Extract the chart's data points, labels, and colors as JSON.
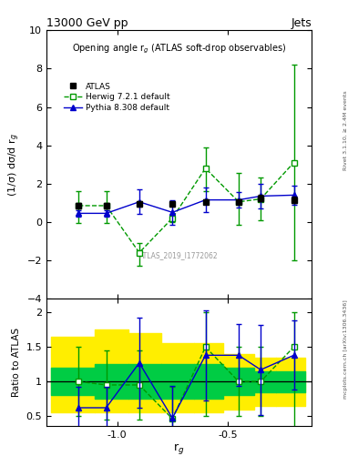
{
  "title_top": "13000 GeV pp",
  "title_top_right": "Jets",
  "plot_title": "Opening angle r$_g$ (ATLAS soft-drop observables)",
  "ylabel_main": "(1/σ) dσ/d r$_g$",
  "ylabel_ratio": "Ratio to ATLAS",
  "xlabel": "r$_g$",
  "right_label_top": "Rivet 3.1.10, ≥ 2.4M events",
  "right_label_bot": "mcplots.cern.ch [arXiv:1306.3436]",
  "watermark": "ATLAS_2019_I1772062",
  "x_data": [
    -1.175,
    -1.05,
    -0.9,
    -0.75,
    -0.6,
    -0.45,
    -0.35,
    -0.2
  ],
  "atlas_y": [
    0.85,
    0.85,
    0.93,
    0.93,
    1.05,
    1.05,
    1.25,
    1.15
  ],
  "atlas_yerr": [
    0.15,
    0.15,
    0.15,
    0.12,
    0.12,
    0.12,
    0.15,
    0.15
  ],
  "herwig_y": [
    0.85,
    0.85,
    -1.6,
    0.2,
    2.8,
    1.05,
    1.2,
    3.1
  ],
  "herwig_yerr_lo": [
    0.9,
    0.9,
    0.7,
    0.2,
    1.2,
    1.2,
    1.1,
    5.1
  ],
  "herwig_yerr_hi": [
    0.75,
    0.75,
    0.5,
    0.15,
    1.1,
    1.5,
    1.1,
    5.1
  ],
  "pythia_y": [
    0.45,
    0.45,
    1.05,
    0.5,
    1.15,
    1.15,
    1.35,
    1.4
  ],
  "pythia_yerr": [
    0.15,
    0.15,
    0.65,
    0.65,
    0.65,
    0.4,
    0.65,
    0.5
  ],
  "ratio_herwig_y": [
    1.0,
    0.95,
    0.95,
    0.46,
    1.5,
    1.0,
    1.0,
    1.5
  ],
  "ratio_herwig_yerr_lo": [
    0.5,
    0.5,
    0.5,
    0.46,
    1.0,
    0.5,
    0.5,
    1.5
  ],
  "ratio_herwig_yerr_hi": [
    0.5,
    0.5,
    0.5,
    0.46,
    0.5,
    0.5,
    0.5,
    0.5
  ],
  "ratio_pythia_y": [
    0.62,
    0.62,
    1.27,
    0.47,
    1.38,
    1.38,
    1.17,
    1.38
  ],
  "ratio_pythia_yerr": [
    0.3,
    0.3,
    0.65,
    0.47,
    0.65,
    0.45,
    0.65,
    0.5
  ],
  "band_edges": [
    -1.3,
    -1.1,
    -0.95,
    -0.8,
    -0.65,
    -0.52,
    -0.38,
    -0.28,
    -0.15
  ],
  "green_lo": [
    0.8,
    0.75,
    0.75,
    0.75,
    0.75,
    0.8,
    0.85,
    0.85
  ],
  "green_hi": [
    1.2,
    1.25,
    1.25,
    1.25,
    1.25,
    1.2,
    1.15,
    1.15
  ],
  "yellow_lo": [
    0.55,
    0.55,
    0.55,
    0.55,
    0.55,
    0.6,
    0.65,
    0.65
  ],
  "yellow_hi": [
    1.65,
    1.75,
    1.7,
    1.55,
    1.55,
    1.4,
    1.35,
    1.35
  ],
  "color_atlas": "#000000",
  "color_herwig": "#009900",
  "color_pythia": "#0000cc",
  "color_green_band": "#00cc44",
  "color_yellow_band": "#ffee00",
  "main_ylim": [
    -4,
    10
  ],
  "ratio_ylim": [
    0.35,
    2.2
  ],
  "main_yticks": [
    -4,
    -2,
    0,
    2,
    4,
    6,
    8,
    10
  ],
  "ratio_yticks": [
    0.5,
    1.0,
    1.5,
    2.0
  ],
  "xlim": [
    -1.32,
    -0.12
  ],
  "xticks": [
    -1.0,
    -0.5
  ]
}
